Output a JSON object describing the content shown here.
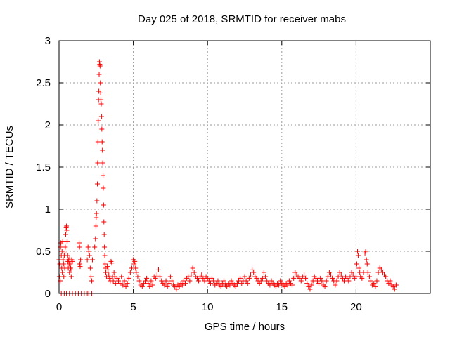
{
  "chart_data": {
    "type": "scatter",
    "title": "Day 025 of 2018, SRMTID for receiver mabs",
    "xlabel": "GPS time / hours",
    "ylabel": "SRMTID / TECUs",
    "xlim": [
      0,
      25
    ],
    "ylim": [
      0,
      3
    ],
    "xticks": [
      0,
      5,
      10,
      15,
      20
    ],
    "xtick_labels": [
      "0",
      "5",
      "10",
      "15",
      "20"
    ],
    "yticks": [
      0,
      0.5,
      1,
      1.5,
      2,
      2.5,
      3
    ],
    "ytick_labels": [
      "0",
      "0.5",
      "1",
      "1.5",
      "2",
      "2.5",
      "3"
    ],
    "grid": true,
    "marker": "+",
    "color": "#ff0000",
    "series": [
      {
        "name": "SRMTID",
        "points": [
          [
            0.0,
            0.4
          ],
          [
            0.02,
            0.2
          ],
          [
            0.05,
            0.35
          ],
          [
            0.08,
            0.15
          ],
          [
            0.1,
            0.55
          ],
          [
            0.12,
            0.6
          ],
          [
            0.15,
            0.45
          ],
          [
            0.18,
            0.3
          ],
          [
            0.2,
            0.5
          ],
          [
            0.22,
            0.25
          ],
          [
            0.25,
            0.62
          ],
          [
            0.28,
            0.4
          ],
          [
            0.3,
            0.35
          ],
          [
            0.32,
            0.2
          ],
          [
            0.35,
            0.45
          ],
          [
            0.38,
            0.3
          ],
          [
            0.4,
            0.48
          ],
          [
            0.42,
            0.55
          ],
          [
            0.45,
            0.7
          ],
          [
            0.48,
            0.78
          ],
          [
            0.5,
            0.8
          ],
          [
            0.52,
            0.75
          ],
          [
            0.55,
            0.62
          ],
          [
            0.58,
            0.45
          ],
          [
            0.6,
            0.38
          ],
          [
            0.62,
            0.3
          ],
          [
            0.65,
            0.4
          ],
          [
            0.68,
            0.35
          ],
          [
            0.7,
            0.25
          ],
          [
            0.72,
            0.42
          ],
          [
            0.75,
            0.35
          ],
          [
            0.78,
            0.3
          ],
          [
            0.8,
            0.28
          ],
          [
            0.82,
            0.2
          ],
          [
            0.85,
            0.4
          ],
          [
            0.9,
            0.38
          ],
          [
            0.15,
            0.0
          ],
          [
            0.35,
            0.0
          ],
          [
            0.5,
            0.0
          ],
          [
            0.7,
            0.0
          ],
          [
            0.9,
            0.0
          ],
          [
            1.1,
            0.0
          ],
          [
            1.3,
            0.0
          ],
          [
            1.5,
            0.0
          ],
          [
            1.7,
            0.0
          ],
          [
            1.9,
            0.0
          ],
          [
            2.0,
            0.0
          ],
          [
            2.2,
            0.0
          ],
          [
            1.35,
            0.6
          ],
          [
            1.38,
            0.55
          ],
          [
            1.4,
            0.35
          ],
          [
            1.42,
            0.32
          ],
          [
            1.45,
            0.4
          ],
          [
            1.9,
            0.4
          ],
          [
            1.95,
            0.55
          ],
          [
            2.0,
            0.5
          ],
          [
            2.05,
            0.45
          ],
          [
            2.1,
            0.3
          ],
          [
            2.15,
            0.2
          ],
          [
            2.2,
            0.15
          ],
          [
            2.25,
            0.4
          ],
          [
            2.4,
            0.55
          ],
          [
            2.45,
            0.65
          ],
          [
            2.48,
            0.8
          ],
          [
            2.5,
            0.9
          ],
          [
            2.52,
            0.95
          ],
          [
            2.55,
            1.1
          ],
          [
            2.58,
            1.3
          ],
          [
            2.6,
            1.55
          ],
          [
            2.62,
            1.8
          ],
          [
            2.64,
            2.05
          ],
          [
            2.66,
            2.3
          ],
          [
            2.68,
            2.4
          ],
          [
            2.7,
            2.6
          ],
          [
            2.72,
            2.75
          ],
          [
            2.74,
            2.72
          ],
          [
            2.76,
            2.7
          ],
          [
            2.78,
            2.5
          ],
          [
            2.8,
            2.38
          ],
          [
            2.82,
            2.3
          ],
          [
            2.84,
            2.25
          ],
          [
            2.86,
            2.1
          ],
          [
            2.88,
            1.95
          ],
          [
            2.9,
            1.8
          ],
          [
            2.92,
            1.7
          ],
          [
            2.94,
            1.55
          ],
          [
            2.96,
            1.4
          ],
          [
            2.98,
            1.25
          ],
          [
            3.0,
            1.05
          ],
          [
            3.02,
            0.85
          ],
          [
            3.04,
            0.7
          ],
          [
            3.06,
            0.55
          ],
          [
            3.08,
            0.45
          ],
          [
            3.1,
            0.35
          ],
          [
            3.12,
            0.3
          ],
          [
            3.15,
            0.25
          ],
          [
            3.2,
            0.2
          ],
          [
            3.25,
            0.32
          ],
          [
            3.3,
            0.28
          ],
          [
            3.35,
            0.22
          ],
          [
            3.4,
            0.18
          ],
          [
            3.45,
            0.15
          ],
          [
            3.5,
            0.38
          ],
          [
            3.55,
            0.36
          ],
          [
            3.6,
            0.2
          ],
          [
            3.65,
            0.15
          ],
          [
            3.7,
            0.25
          ],
          [
            3.75,
            0.2
          ],
          [
            3.8,
            0.12
          ],
          [
            3.9,
            0.18
          ],
          [
            4.0,
            0.15
          ],
          [
            4.1,
            0.12
          ],
          [
            4.2,
            0.2
          ],
          [
            4.3,
            0.1
          ],
          [
            4.4,
            0.15
          ],
          [
            4.5,
            0.08
          ],
          [
            4.6,
            0.12
          ],
          [
            4.7,
            0.18
          ],
          [
            4.8,
            0.25
          ],
          [
            4.9,
            0.3
          ],
          [
            5.0,
            0.4
          ],
          [
            5.05,
            0.35
          ],
          [
            5.1,
            0.38
          ],
          [
            5.15,
            0.3
          ],
          [
            5.2,
            0.25
          ],
          [
            5.3,
            0.2
          ],
          [
            5.4,
            0.15
          ],
          [
            5.5,
            0.1
          ],
          [
            5.6,
            0.08
          ],
          [
            5.7,
            0.12
          ],
          [
            5.8,
            0.15
          ],
          [
            5.9,
            0.18
          ],
          [
            6.0,
            0.12
          ],
          [
            6.1,
            0.08
          ],
          [
            6.2,
            0.15
          ],
          [
            6.3,
            0.1
          ],
          [
            6.4,
            0.2
          ],
          [
            6.5,
            0.18
          ],
          [
            6.6,
            0.22
          ],
          [
            6.7,
            0.28
          ],
          [
            6.8,
            0.2
          ],
          [
            6.9,
            0.15
          ],
          [
            7.0,
            0.12
          ],
          [
            7.1,
            0.1
          ],
          [
            7.2,
            0.15
          ],
          [
            7.3,
            0.08
          ],
          [
            7.4,
            0.12
          ],
          [
            7.5,
            0.2
          ],
          [
            7.6,
            0.15
          ],
          [
            7.7,
            0.1
          ],
          [
            7.8,
            0.08
          ],
          [
            7.9,
            0.05
          ],
          [
            8.0,
            0.1
          ],
          [
            8.1,
            0.08
          ],
          [
            8.2,
            0.12
          ],
          [
            8.3,
            0.1
          ],
          [
            8.4,
            0.15
          ],
          [
            8.5,
            0.12
          ],
          [
            8.6,
            0.18
          ],
          [
            8.7,
            0.2
          ],
          [
            8.8,
            0.15
          ],
          [
            8.9,
            0.22
          ],
          [
            9.0,
            0.3
          ],
          [
            9.1,
            0.25
          ],
          [
            9.2,
            0.2
          ],
          [
            9.3,
            0.18
          ],
          [
            9.4,
            0.15
          ],
          [
            9.5,
            0.2
          ],
          [
            9.6,
            0.22
          ],
          [
            9.7,
            0.18
          ],
          [
            9.8,
            0.15
          ],
          [
            9.9,
            0.2
          ],
          [
            10.0,
            0.18
          ],
          [
            10.1,
            0.15
          ],
          [
            10.2,
            0.12
          ],
          [
            10.3,
            0.18
          ],
          [
            10.4,
            0.15
          ],
          [
            10.5,
            0.1
          ],
          [
            10.6,
            0.12
          ],
          [
            10.7,
            0.15
          ],
          [
            10.8,
            0.1
          ],
          [
            10.9,
            0.08
          ],
          [
            11.0,
            0.12
          ],
          [
            11.1,
            0.15
          ],
          [
            11.2,
            0.1
          ],
          [
            11.3,
            0.08
          ],
          [
            11.4,
            0.12
          ],
          [
            11.5,
            0.1
          ],
          [
            11.6,
            0.15
          ],
          [
            11.7,
            0.12
          ],
          [
            11.8,
            0.1
          ],
          [
            11.9,
            0.08
          ],
          [
            12.0,
            0.12
          ],
          [
            12.1,
            0.15
          ],
          [
            12.2,
            0.18
          ],
          [
            12.3,
            0.12
          ],
          [
            12.4,
            0.15
          ],
          [
            12.5,
            0.2
          ],
          [
            12.6,
            0.15
          ],
          [
            12.7,
            0.12
          ],
          [
            12.8,
            0.18
          ],
          [
            12.9,
            0.22
          ],
          [
            13.0,
            0.28
          ],
          [
            13.1,
            0.25
          ],
          [
            13.2,
            0.2
          ],
          [
            13.3,
            0.18
          ],
          [
            13.4,
            0.15
          ],
          [
            13.5,
            0.12
          ],
          [
            13.6,
            0.15
          ],
          [
            13.7,
            0.18
          ],
          [
            13.8,
            0.25
          ],
          [
            13.9,
            0.2
          ],
          [
            14.0,
            0.15
          ],
          [
            14.1,
            0.12
          ],
          [
            14.2,
            0.1
          ],
          [
            14.3,
            0.15
          ],
          [
            14.4,
            0.12
          ],
          [
            14.5,
            0.1
          ],
          [
            14.6,
            0.08
          ],
          [
            14.7,
            0.12
          ],
          [
            14.8,
            0.1
          ],
          [
            14.9,
            0.15
          ],
          [
            15.0,
            0.12
          ],
          [
            15.1,
            0.1
          ],
          [
            15.2,
            0.08
          ],
          [
            15.3,
            0.12
          ],
          [
            15.4,
            0.1
          ],
          [
            15.5,
            0.15
          ],
          [
            15.6,
            0.12
          ],
          [
            15.7,
            0.1
          ],
          [
            15.8,
            0.18
          ],
          [
            15.9,
            0.25
          ],
          [
            16.0,
            0.22
          ],
          [
            16.1,
            0.2
          ],
          [
            16.2,
            0.18
          ],
          [
            16.3,
            0.15
          ],
          [
            16.4,
            0.2
          ],
          [
            16.5,
            0.22
          ],
          [
            16.6,
            0.18
          ],
          [
            16.7,
            0.12
          ],
          [
            16.8,
            0.08
          ],
          [
            16.9,
            0.05
          ],
          [
            17.0,
            0.1
          ],
          [
            17.1,
            0.15
          ],
          [
            17.2,
            0.2
          ],
          [
            17.3,
            0.18
          ],
          [
            17.4,
            0.15
          ],
          [
            17.5,
            0.12
          ],
          [
            17.6,
            0.18
          ],
          [
            17.7,
            0.15
          ],
          [
            17.8,
            0.1
          ],
          [
            17.9,
            0.08
          ],
          [
            18.0,
            0.15
          ],
          [
            18.1,
            0.2
          ],
          [
            18.2,
            0.25
          ],
          [
            18.3,
            0.22
          ],
          [
            18.4,
            0.18
          ],
          [
            18.5,
            0.15
          ],
          [
            18.6,
            0.1
          ],
          [
            18.7,
            0.15
          ],
          [
            18.8,
            0.2
          ],
          [
            18.9,
            0.25
          ],
          [
            19.0,
            0.22
          ],
          [
            19.1,
            0.18
          ],
          [
            19.2,
            0.15
          ],
          [
            19.3,
            0.2
          ],
          [
            19.4,
            0.18
          ],
          [
            19.5,
            0.15
          ],
          [
            19.6,
            0.2
          ],
          [
            19.7,
            0.25
          ],
          [
            19.8,
            0.22
          ],
          [
            19.9,
            0.18
          ],
          [
            20.0,
            0.2
          ],
          [
            20.05,
            0.35
          ],
          [
            20.1,
            0.5
          ],
          [
            20.15,
            0.45
          ],
          [
            20.2,
            0.3
          ],
          [
            20.25,
            0.25
          ],
          [
            20.3,
            0.2
          ],
          [
            20.4,
            0.18
          ],
          [
            20.5,
            0.25
          ],
          [
            20.6,
            0.48
          ],
          [
            20.65,
            0.5
          ],
          [
            20.7,
            0.4
          ],
          [
            20.75,
            0.35
          ],
          [
            20.8,
            0.25
          ],
          [
            20.9,
            0.2
          ],
          [
            21.0,
            0.15
          ],
          [
            21.1,
            0.1
          ],
          [
            21.2,
            0.12
          ],
          [
            21.3,
            0.08
          ],
          [
            21.4,
            0.15
          ],
          [
            21.5,
            0.25
          ],
          [
            21.6,
            0.3
          ],
          [
            21.7,
            0.28
          ],
          [
            21.8,
            0.25
          ],
          [
            21.9,
            0.22
          ],
          [
            22.0,
            0.2
          ],
          [
            22.1,
            0.15
          ],
          [
            22.2,
            0.12
          ],
          [
            22.3,
            0.15
          ],
          [
            22.4,
            0.1
          ],
          [
            22.5,
            0.08
          ],
          [
            22.6,
            0.05
          ],
          [
            22.7,
            0.1
          ]
        ]
      }
    ]
  }
}
